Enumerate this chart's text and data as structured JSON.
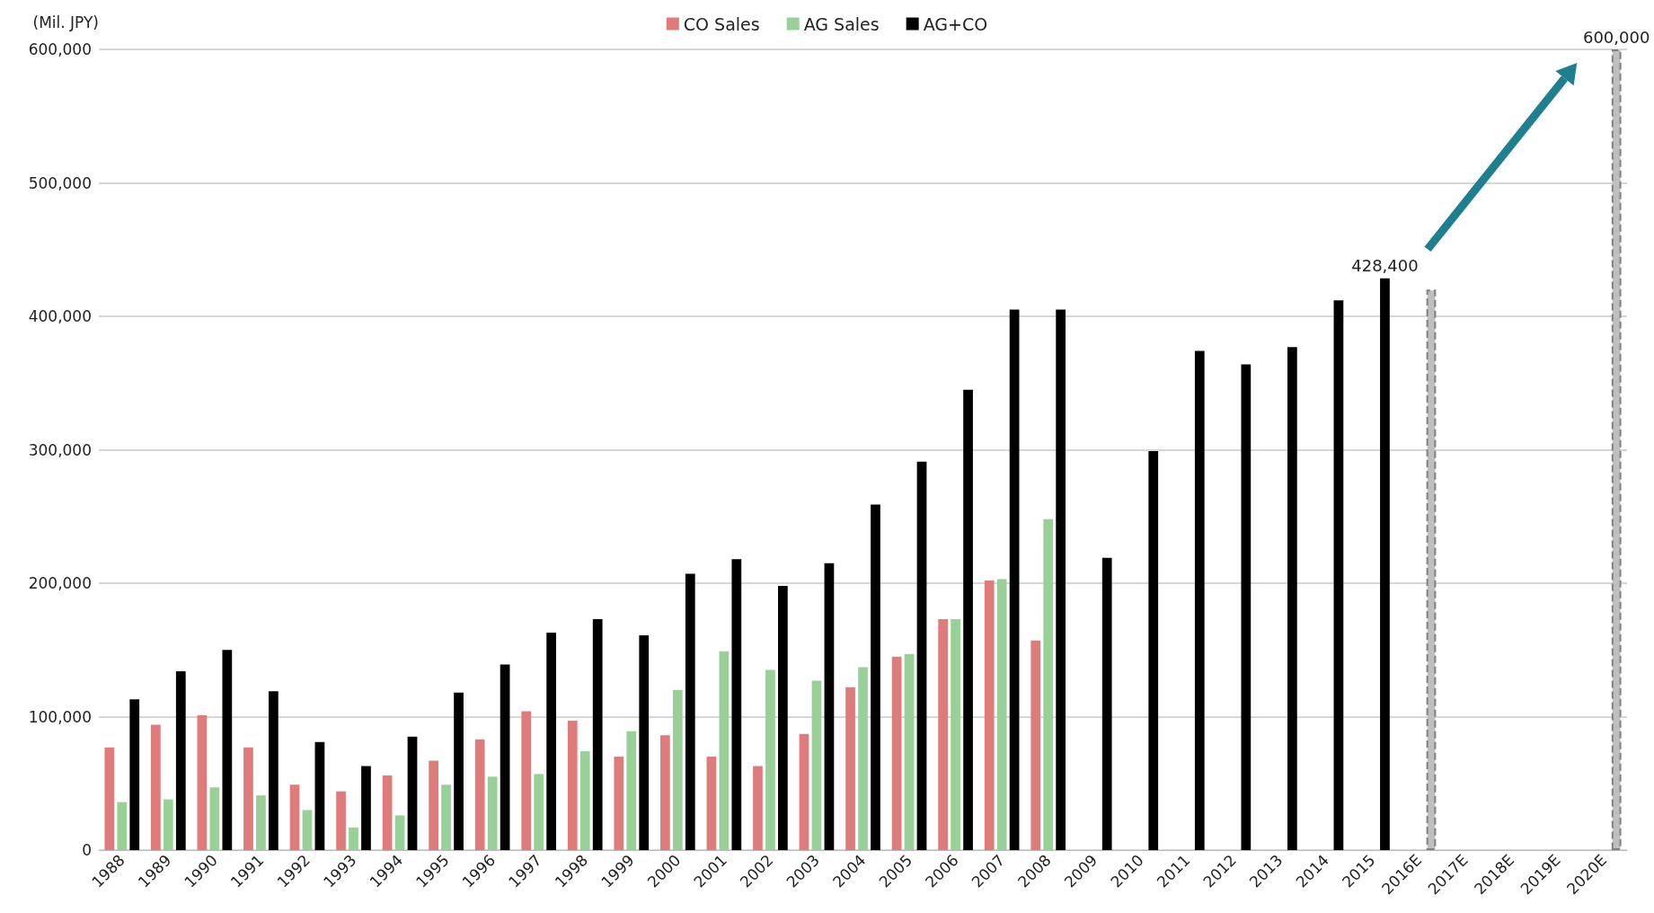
{
  "chart_data": {
    "type": "bar",
    "ylabel": "(Mil. JPY)",
    "categories": [
      "1988",
      "1989",
      "1990",
      "1991",
      "1992",
      "1993",
      "1994",
      "1995",
      "1996",
      "1997",
      "1998",
      "1999",
      "2000",
      "2001",
      "2002",
      "2003",
      "2004",
      "2005",
      "2006",
      "2007",
      "2008",
      "2009",
      "2010",
      "2011",
      "2012",
      "2013",
      "2014",
      "2015",
      "2016E",
      "2017E",
      "2018E",
      "2019E",
      "2020E"
    ],
    "series": [
      {
        "name": "CO Sales",
        "color": "#e07b7b",
        "values": [
          77000,
          94000,
          101000,
          77000,
          49000,
          44000,
          56000,
          67000,
          83000,
          104000,
          97000,
          70000,
          86000,
          70000,
          63000,
          87000,
          122000,
          145000,
          173000,
          202000,
          157000,
          null,
          null,
          null,
          null,
          null,
          null,
          null,
          null,
          null,
          null,
          null,
          null
        ]
      },
      {
        "name": "AG Sales",
        "color": "#98d098",
        "values": [
          36000,
          38000,
          47000,
          41000,
          30000,
          17000,
          26000,
          49000,
          55000,
          57000,
          74000,
          89000,
          120000,
          149000,
          135000,
          127000,
          137000,
          147000,
          173000,
          203000,
          248000,
          null,
          null,
          null,
          null,
          null,
          null,
          null,
          null,
          null,
          null,
          null,
          null
        ]
      },
      {
        "name": "AG+CO",
        "color": "#000000",
        "colors": [
          "#000000",
          "#000000",
          "#000000",
          "#000000",
          "#000000",
          "#000000",
          "#000000",
          "#000000",
          "#000000",
          "#000000",
          "#000000",
          "#000000",
          "#000000",
          "#000000",
          "#000000",
          "#000000",
          "#000000",
          "#000000",
          "#000000",
          "#000000",
          "#000000",
          "#000000",
          "#000000",
          "#000000",
          "#000000",
          "#000000",
          "#000000",
          "#000000",
          "#bfbfbf",
          "#bfbfbf",
          "#bfbfbf",
          "#bfbfbf",
          "#bfbfbf"
        ],
        "values": [
          113000,
          134000,
          150000,
          119000,
          81000,
          63000,
          85000,
          118000,
          139000,
          163000,
          173000,
          161000,
          207000,
          218000,
          198000,
          215000,
          259000,
          291000,
          345000,
          405000,
          405000,
          219000,
          299000,
          374000,
          364000,
          377000,
          412000,
          428400,
          420000,
          null,
          null,
          null,
          600000
        ],
        "value_labels": [
          null,
          null,
          null,
          null,
          null,
          null,
          null,
          null,
          null,
          null,
          null,
          null,
          null,
          null,
          null,
          null,
          null,
          null,
          null,
          null,
          null,
          null,
          null,
          null,
          null,
          null,
          null,
          "428,400",
          null,
          null,
          null,
          null,
          "600,000"
        ]
      }
    ],
    "ylim": [
      0,
      600000
    ],
    "yticks": [
      0,
      {
        "value": 100000,
        "label": "100,000"
      },
      {
        "value": 200000,
        "label": "200,000"
      },
      {
        "value": 300000,
        "label": "300,000"
      },
      {
        "value": 400000,
        "label": "400,000"
      },
      {
        "value": 500000,
        "label": "500,000"
      },
      {
        "value": 600000,
        "label": "600,000"
      }
    ],
    "grid": "y",
    "legend": "top"
  }
}
